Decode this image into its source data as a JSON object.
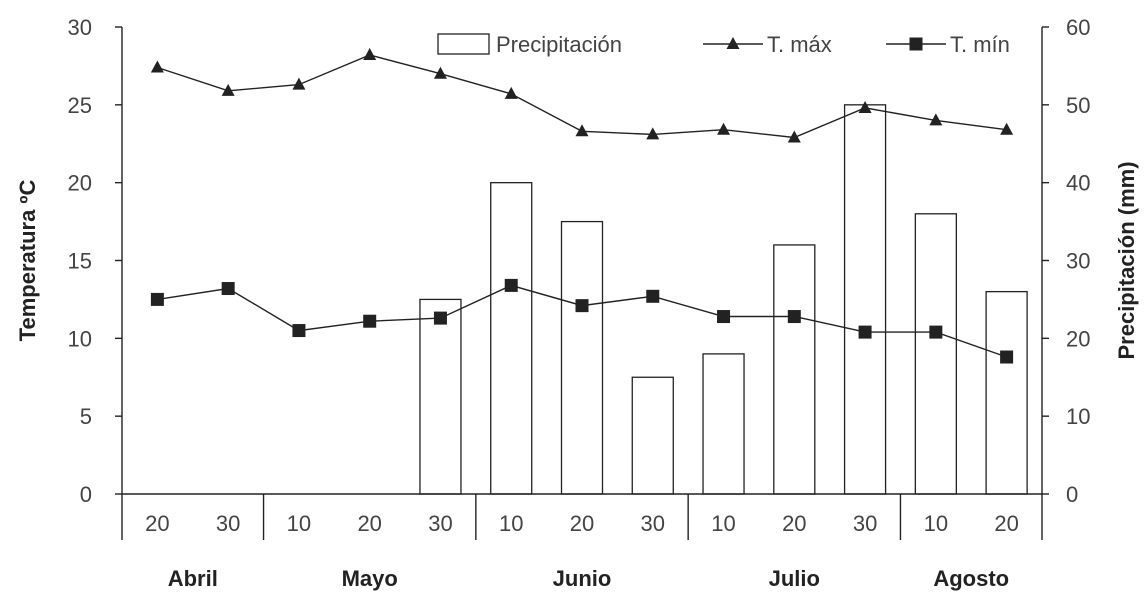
{
  "chart_data": {
    "type": "bar",
    "categories": [
      "20",
      "30",
      "10",
      "20",
      "30",
      "10",
      "20",
      "30",
      "10",
      "20",
      "30",
      "10",
      "20"
    ],
    "months": [
      {
        "label": "Abril",
        "count": 2
      },
      {
        "label": "Mayo",
        "count": 3
      },
      {
        "label": "Junio",
        "count": 3
      },
      {
        "label": "Julio",
        "count": 3
      },
      {
        "label": "Agosto",
        "count": 2
      }
    ],
    "series": [
      {
        "name": "Precipitación",
        "type": "bar",
        "axis": "right",
        "values": [
          0,
          0,
          0,
          0,
          25,
          40,
          35,
          15,
          18,
          32,
          50,
          36,
          26
        ]
      },
      {
        "name": "T. máx",
        "type": "line",
        "marker": "triangle",
        "axis": "left",
        "values": [
          27.4,
          25.9,
          26.3,
          28.2,
          27.0,
          25.7,
          23.3,
          23.1,
          23.4,
          22.9,
          24.8,
          24.0,
          23.4
        ]
      },
      {
        "name": "T. mín",
        "type": "line",
        "marker": "square",
        "axis": "left",
        "values": [
          12.5,
          13.2,
          10.5,
          11.1,
          11.3,
          13.4,
          12.1,
          12.7,
          11.4,
          11.4,
          10.4,
          10.4,
          8.8
        ]
      }
    ],
    "ylabel": "Temperatura ºC",
    "y2label": "Precipitación (mm)",
    "ylim": [
      0,
      30
    ],
    "y2lim": [
      0,
      60
    ],
    "yticks": [
      "0",
      "5",
      "10",
      "15",
      "20",
      "25",
      "30"
    ],
    "y2ticks": [
      "0",
      "10",
      "20",
      "30",
      "40",
      "50",
      "60"
    ],
    "grid": false,
    "legend_position": "top-right",
    "colors": {
      "axis": "#222222",
      "bar_fill": "#ffffff",
      "line": "#222222",
      "text": "#444444"
    }
  }
}
